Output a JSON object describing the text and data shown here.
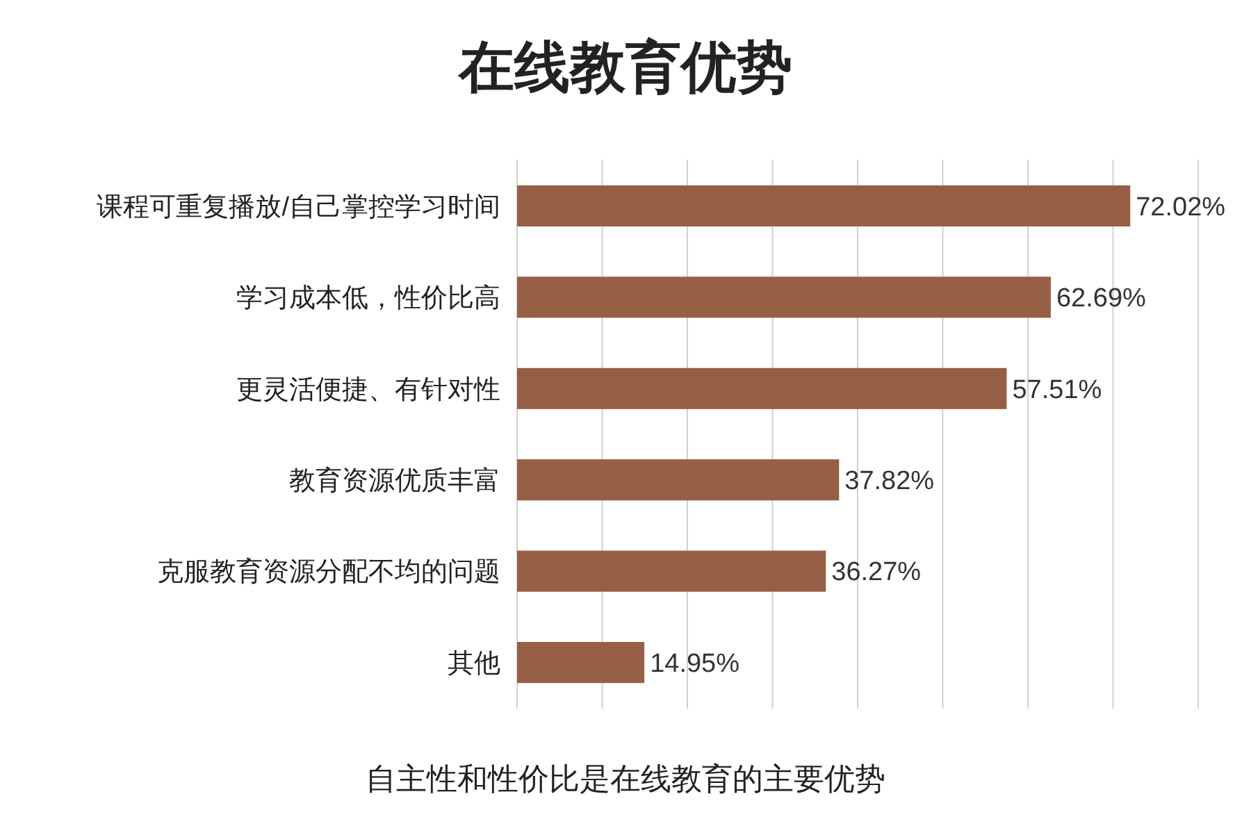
{
  "chart_data": {
    "type": "bar",
    "orientation": "horizontal",
    "title": "在线教育优势",
    "categories": [
      "课程可重复播放/自己掌控学习时间",
      "学习成本低，性价比高",
      "更灵活便捷、有针对性",
      "教育资源优质丰富",
      "克服教育资源分配不均的问题",
      "其他"
    ],
    "values": [
      72.02,
      62.69,
      57.51,
      37.82,
      36.27,
      14.95
    ],
    "value_labels": [
      "72.02%",
      "62.69%",
      "57.51%",
      "37.82%",
      "36.27%",
      "14.95%"
    ],
    "color": "#965f45",
    "xlim": [
      0,
      80
    ],
    "xticks": [
      {
        "value": 0,
        "label": null
      },
      {
        "value": 10,
        "label": null
      },
      {
        "value": 20,
        "label": null
      },
      {
        "value": 30,
        "label": null
      },
      {
        "value": 40,
        "label": null
      },
      {
        "value": 50,
        "label": null
      },
      {
        "value": 60,
        "label": null
      },
      {
        "value": 70,
        "label": null
      },
      {
        "value": 80,
        "label": null
      }
    ],
    "grid": "x",
    "tick_labels": "y",
    "annotations": [
      "自主性和性价比是在线教育的主要优势"
    ]
  }
}
